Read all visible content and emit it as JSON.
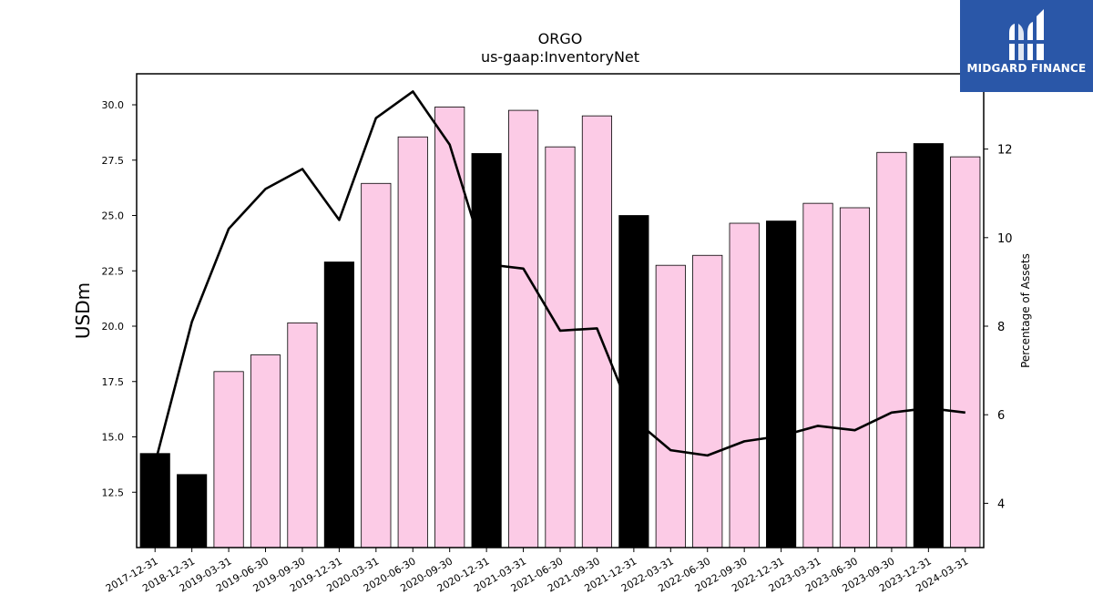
{
  "chart_data": {
    "type": "bar",
    "title": "ORGO",
    "subtitle": "us-gaap:InventoryNet",
    "ylabel": "USDm",
    "y2label": "Percentage of Assets",
    "ylim": [
      10,
      31.4
    ],
    "y2lim": [
      3,
      13.7
    ],
    "yticks": [
      "12.5",
      "15.0",
      "17.5",
      "20.0",
      "22.5",
      "25.0",
      "27.5",
      "30.0"
    ],
    "y2ticks": [
      "4",
      "6",
      "8",
      "10",
      "12"
    ],
    "categories": [
      "2017-12-31",
      "2018-12-31",
      "2019-03-31",
      "2019-06-30",
      "2019-09-30",
      "2019-12-31",
      "2020-03-31",
      "2020-06-30",
      "2020-09-30",
      "2020-12-31",
      "2021-03-31",
      "2021-06-30",
      "2021-09-30",
      "2021-12-31",
      "2022-03-31",
      "2022-06-30",
      "2022-09-30",
      "2022-12-31",
      "2023-03-31",
      "2023-06-30",
      "2023-09-30",
      "2023-12-31",
      "2024-03-31"
    ],
    "series": [
      {
        "values": [
          14.25,
          13.3,
          17.95,
          18.7,
          20.15,
          22.9,
          26.45,
          28.55,
          29.9,
          27.8,
          29.75,
          28.1,
          29.5,
          25.0,
          22.75,
          23.2,
          24.65,
          24.75,
          25.55,
          25.35,
          27.85,
          28.25,
          27.65
        ],
        "year_end": [
          true,
          true,
          false,
          false,
          false,
          true,
          false,
          false,
          false,
          true,
          false,
          false,
          false,
          true,
          false,
          false,
          false,
          true,
          false,
          false,
          false,
          true,
          false
        ]
      },
      {
        "axis": "right",
        "type": "line",
        "values": [
          4.9,
          8.1,
          10.2,
          11.1,
          11.55,
          10.4,
          12.7,
          13.3,
          12.1,
          9.4,
          9.3,
          7.9,
          7.95,
          5.9,
          5.2,
          5.08,
          5.4,
          5.52,
          5.75,
          5.65,
          6.05,
          6.15,
          6.05
        ]
      }
    ],
    "colors": {
      "year_end_bar": "#000000",
      "quarter_bar": "#fccbe6",
      "bar_edge": "#000000",
      "line": "#000000"
    }
  },
  "logo": {
    "text": "MIDGARD FINANCE",
    "background": "#2a57a8"
  }
}
